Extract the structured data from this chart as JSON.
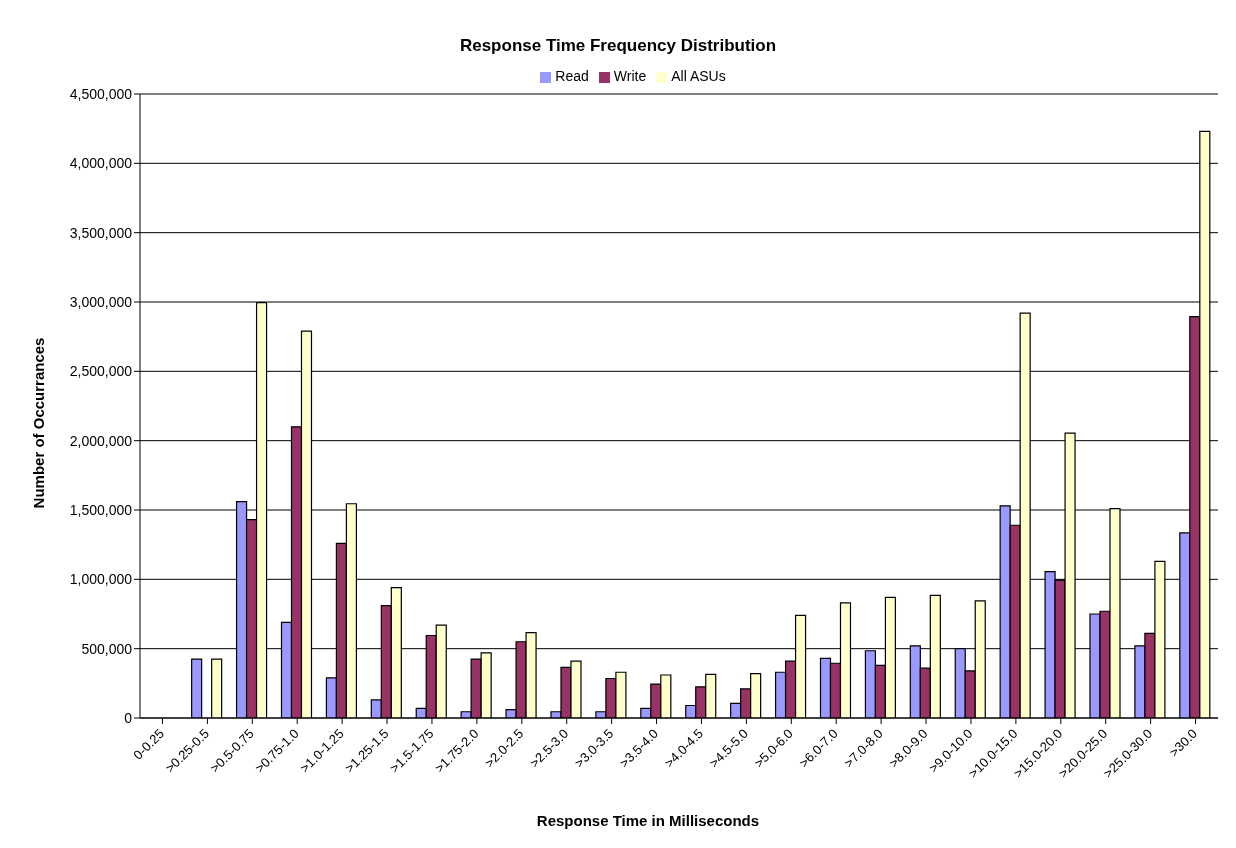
{
  "chart_data": {
    "type": "bar",
    "title": "Response Time Frequency Distribution",
    "xlabel": "Response Time in Milliseconds",
    "ylabel": "Number of Occurrances",
    "categories": [
      "0-0.25",
      ">0.25-0.5",
      ">0.5-0.75",
      ">0.75-1.0",
      ">1.0-1.25",
      ">1.25-1.5",
      ">1.5-1.75",
      ">1.75-2.0",
      ">2.0-2.5",
      ">2.5-3.0",
      ">3.0-3.5",
      ">3.5-4.0",
      ">4.0-4.5",
      ">4.5-5.0",
      ">5.0-6.0",
      ">6.0-7.0",
      ">7.0-8.0",
      ">8.0-9.0",
      ">9.0-10.0",
      ">10.0-15.0",
      ">15.0-20.0",
      ">20.0-25.0",
      ">25.0-30.0",
      ">30.0"
    ],
    "series": [
      {
        "name": "Read",
        "color": "#9999ff",
        "values": [
          0,
          425000,
          1560000,
          690000,
          290000,
          130000,
          70000,
          45000,
          60000,
          45000,
          45000,
          70000,
          90000,
          105000,
          330000,
          430000,
          485000,
          520000,
          500000,
          1530000,
          1055000,
          750000,
          520000,
          1335000
        ]
      },
      {
        "name": "Write",
        "color": "#993366",
        "values": [
          0,
          0,
          1430000,
          2100000,
          1260000,
          810000,
          595000,
          425000,
          550000,
          365000,
          285000,
          245000,
          225000,
          210000,
          410000,
          395000,
          380000,
          360000,
          340000,
          1390000,
          995000,
          770000,
          610000,
          2895000
        ]
      },
      {
        "name": "All ASUs",
        "color": "#ffffcc",
        "values": [
          0,
          425000,
          2995000,
          2790000,
          1545000,
          940000,
          670000,
          470000,
          615000,
          410000,
          330000,
          310000,
          315000,
          320000,
          740000,
          830000,
          870000,
          885000,
          845000,
          2920000,
          2055000,
          1510000,
          1130000,
          4230000
        ]
      }
    ],
    "ylim": [
      0,
      4500000
    ],
    "yticks": [
      0,
      {
        "value": 500000,
        "label": "500,000"
      },
      {
        "value": 1000000,
        "label": "1,000,000"
      },
      {
        "value": 1500000,
        "label": "1,500,000"
      },
      {
        "value": 2000000,
        "label": "2,000,000"
      },
      {
        "value": 2500000,
        "label": "2,500,000"
      },
      {
        "value": 3000000,
        "label": "3,000,000"
      },
      {
        "value": 3500000,
        "label": "3,500,000"
      },
      {
        "value": 4000000,
        "label": "4,000,000"
      },
      {
        "value": 4500000,
        "label": "4,500,000"
      }
    ],
    "grid": "y",
    "legend": "top"
  }
}
